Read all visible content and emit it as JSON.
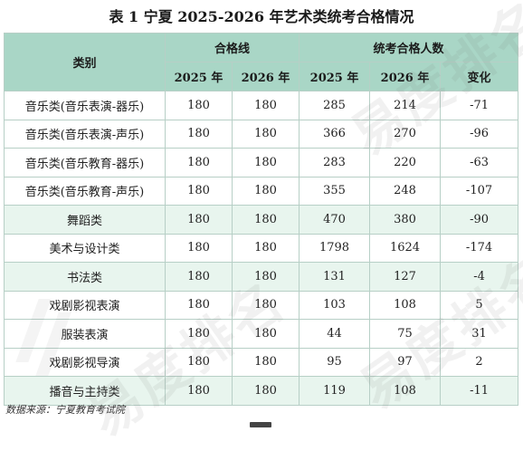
{
  "title": "表 1  宁夏 2025-2026 年艺术类统考合格情况",
  "header": {
    "category": "类别",
    "pass_line": "合格线",
    "passers": "统考合格人数",
    "y2025": "2025 年",
    "y2026": "2026 年",
    "change": "变化"
  },
  "rows": [
    {
      "category": "音乐类(音乐表演-器乐)",
      "line2025": "180",
      "line2026": "180",
      "num2025": "285",
      "num2026": "214",
      "change": "-71"
    },
    {
      "category": "音乐类(音乐表演-声乐)",
      "line2025": "180",
      "line2026": "180",
      "num2025": "366",
      "num2026": "270",
      "change": "-96"
    },
    {
      "category": "音乐类(音乐教育-器乐)",
      "line2025": "180",
      "line2026": "180",
      "num2025": "283",
      "num2026": "220",
      "change": "-63"
    },
    {
      "category": "音乐类(音乐教育-声乐)",
      "line2025": "180",
      "line2026": "180",
      "num2025": "355",
      "num2026": "248",
      "change": "-107"
    },
    {
      "category": "舞蹈类",
      "line2025": "180",
      "line2026": "180",
      "num2025": "470",
      "num2026": "380",
      "change": "-90"
    },
    {
      "category": "美术与设计类",
      "line2025": "180",
      "line2026": "180",
      "num2025": "1798",
      "num2026": "1624",
      "change": "-174"
    },
    {
      "category": "书法类",
      "line2025": "180",
      "line2026": "180",
      "num2025": "131",
      "num2026": "127",
      "change": "-4"
    },
    {
      "category": "戏剧影视表演",
      "line2025": "180",
      "line2026": "180",
      "num2025": "103",
      "num2026": "108",
      "change": "5"
    },
    {
      "category": "服装表演",
      "line2025": "180",
      "line2026": "180",
      "num2025": "44",
      "num2026": "75",
      "change": "31"
    },
    {
      "category": "戏剧影视导演",
      "line2025": "180",
      "line2026": "180",
      "num2025": "95",
      "num2026": "97",
      "change": "2"
    },
    {
      "category": "播音与主持类",
      "line2025": "180",
      "line2026": "180",
      "num2025": "119",
      "num2026": "108",
      "change": "-11"
    }
  ],
  "source_note": "数据来源：宁夏教育考试院",
  "watermark_text": "易度排名",
  "colors": {
    "header_bg": "#a9d6c6",
    "shaded_row": "#e8f5ee",
    "border": "#b7cfc6"
  }
}
